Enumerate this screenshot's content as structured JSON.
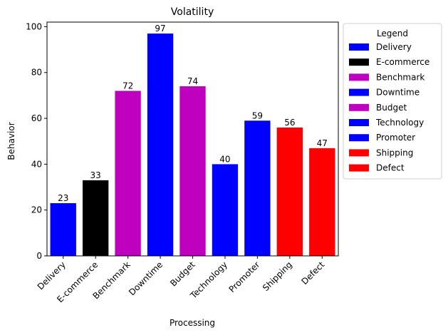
{
  "chart_data": {
    "type": "bar",
    "title": "Volatility",
    "xlabel": "Processing",
    "ylabel": "Behavior",
    "ylim": [
      0,
      102
    ],
    "yticks": [
      0,
      20,
      40,
      60,
      80,
      100
    ],
    "categories": [
      "Delivery",
      "E-commerce",
      "Benchmark",
      "Downtime",
      "Budget",
      "Technology",
      "Promoter",
      "Shipping",
      "Defect"
    ],
    "values": [
      23,
      33,
      72,
      97,
      74,
      40,
      59,
      56,
      47
    ],
    "colors": [
      "#0000ff",
      "#000000",
      "#bf00bf",
      "#0000ff",
      "#bf00bf",
      "#0000ff",
      "#0000ff",
      "#ff0000",
      "#ff0000"
    ],
    "grid": false,
    "legend": {
      "title": "Legend",
      "placement": "outside-right",
      "entries": [
        "Delivery",
        "E-commerce",
        "Benchmark",
        "Downtime",
        "Budget",
        "Technology",
        "Promoter",
        "Shipping",
        "Defect"
      ]
    }
  }
}
